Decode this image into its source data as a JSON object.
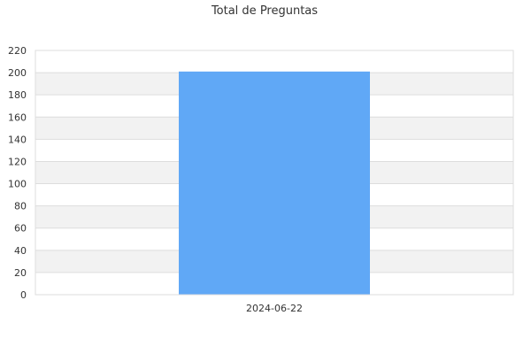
{
  "chart_data": {
    "type": "bar",
    "title": "Total de Preguntas",
    "categories": [
      "2024-06-22"
    ],
    "values": [
      201
    ],
    "ylim": [
      0,
      220
    ],
    "yticks": [
      0,
      20,
      40,
      60,
      80,
      100,
      120,
      140,
      160,
      180,
      200,
      220
    ],
    "grid": true,
    "colors": {
      "bar": "#60a8f6",
      "band": "#f2f2f2",
      "border": "#dddddd"
    }
  }
}
